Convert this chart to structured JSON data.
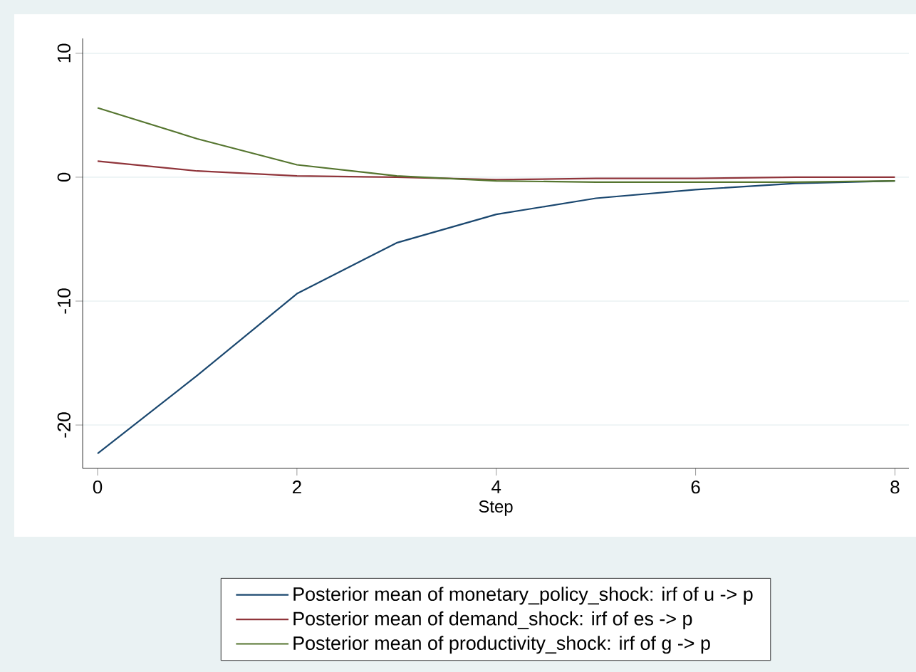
{
  "chart_data": {
    "type": "line",
    "xlabel": "Step",
    "x": [
      0,
      1,
      2,
      3,
      4,
      5,
      6,
      7,
      8
    ],
    "series": [
      {
        "name": "Posterior mean of  monetary_policy_shock: irf of u -> p",
        "color": "#1a476f",
        "values": [
          -22.3,
          -16.0,
          -9.4,
          -5.3,
          -3.0,
          -1.7,
          -1.0,
          -0.5,
          -0.3
        ]
      },
      {
        "name": "Posterior mean of  demand_shock: irf of es -> p",
        "color": "#90353b",
        "values": [
          1.3,
          0.5,
          0.1,
          0.0,
          -0.2,
          -0.1,
          -0.1,
          0.0,
          0.0
        ]
      },
      {
        "name": "Posterior mean of  productivity_shock: irf of g -> p",
        "color": "#55752f",
        "values": [
          5.6,
          3.1,
          1.0,
          0.1,
          -0.3,
          -0.4,
          -0.4,
          -0.4,
          -0.3
        ]
      }
    ],
    "xlim": [
      -0.15,
      8.14
    ],
    "ylim": [
      -23.5,
      11.2
    ],
    "xticks": [
      0,
      2,
      4,
      6,
      8
    ],
    "yticks": [
      -20,
      -10,
      0,
      10
    ],
    "grid": "y",
    "legend": "bottom",
    "line_style": "solid"
  }
}
